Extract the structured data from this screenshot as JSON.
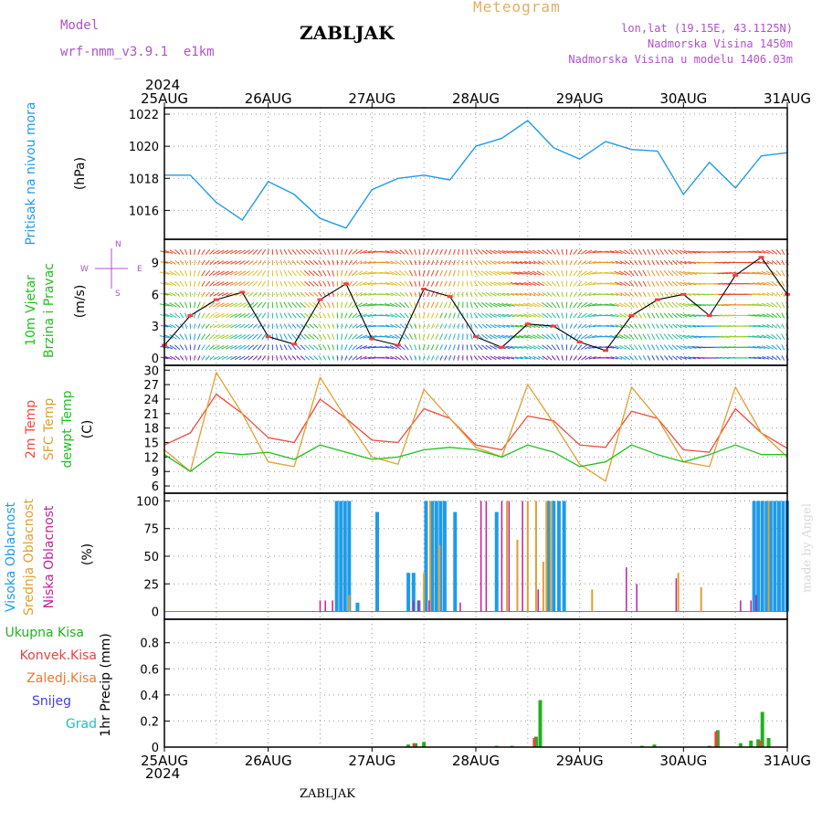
{
  "header": {
    "model_label": "Model",
    "model_name": "wrf-nmm_v3.9.1  e1km",
    "station": "ZABLJAK",
    "product": "Meteogram",
    "coords": "lon,lat (19.15E, 43.1125N)",
    "elevation": "Nadmorska Visina 1450m",
    "model_elevation": "Nadmorska Visina u modelu 1406.03m",
    "year_top": "2024",
    "year_bottom": "2024",
    "footer_station": "ZABLJAK",
    "watermark": "made by Angel"
  },
  "colors": {
    "pressure": "#1f9be8",
    "temp2m": "#f04a3c",
    "sfc_temp": "#e0a030",
    "dewpoint": "#20c020",
    "high_cloud": "#1f9be8",
    "mid_cloud": "#e0a030",
    "low_cloud": "#c0209c",
    "total_precip": "#22b022",
    "conv_precip": "#f04040",
    "frz_precip": "#f07830",
    "snow": "#4040e0",
    "hail": "#20c0c0",
    "title_purple": "#b050d0",
    "grid": "#999999"
  },
  "chart_data": [
    {
      "type": "line",
      "panel": "pressure",
      "ylabel_name": "Pritisak na nivou mora",
      "ylabel_unit": "(hPa)",
      "x_ticks": [
        "25AUG",
        "26AUG",
        "27AUG",
        "28AUG",
        "29AUG",
        "30AUG",
        "31AUG"
      ],
      "y_ticks": [
        1016,
        1018,
        1020,
        1022
      ],
      "ylim": [
        1014.2,
        1022.4
      ],
      "x": [
        0,
        0.25,
        0.5,
        0.75,
        1,
        1.25,
        1.5,
        1.75,
        2,
        2.25,
        2.5,
        2.75,
        3,
        3.25,
        3.5,
        3.75,
        4,
        4.25,
        4.5,
        4.75,
        5,
        5.25,
        5.5,
        5.75,
        6
      ],
      "series": [
        {
          "values": [
            1018.2,
            1018.2,
            1016.5,
            1015.4,
            1017.8,
            1017.0,
            1015.5,
            1014.9,
            1017.3,
            1018.0,
            1018.2,
            1017.9,
            1020.0,
            1020.5,
            1021.6,
            1019.9,
            1019.2,
            1020.3,
            1019.8,
            1019.7,
            1017.0,
            1019.0,
            1017.4,
            1019.4,
            1019.6
          ]
        }
      ]
    },
    {
      "type": "line",
      "panel": "wind",
      "ylabel_name": "10m Vjetar",
      "ylabel_name2": "Brzina i Pravac",
      "ylabel_unit": "(m/s)",
      "compass": [
        "N",
        "W",
        "E",
        "S"
      ],
      "y_ticks": [
        0,
        3,
        6,
        9
      ],
      "ylim": [
        -0.7,
        11.2
      ],
      "x": [
        0,
        0.25,
        0.5,
        0.75,
        1,
        1.25,
        1.5,
        1.75,
        2,
        2.25,
        2.5,
        2.75,
        3,
        3.25,
        3.5,
        3.75,
        4,
        4.25,
        4.5,
        4.75,
        5,
        5.25,
        5.5,
        5.75,
        6
      ],
      "series": [
        {
          "values": [
            1.2,
            4.0,
            5.5,
            6.2,
            2.0,
            1.3,
            5.5,
            7.0,
            1.8,
            1.2,
            6.5,
            5.8,
            2.0,
            1.0,
            3.2,
            3.0,
            1.5,
            0.7,
            4.0,
            5.5,
            6.0,
            4.0,
            7.8,
            9.5,
            6.0
          ]
        }
      ]
    },
    {
      "type": "line",
      "panel": "temperature",
      "ylabel_name": "2m Temp",
      "ylabel_name2": "SFC Temp",
      "ylabel_name3": "dewpt Temp",
      "ylabel_unit": "(C)",
      "y_ticks": [
        6,
        9,
        12,
        15,
        18,
        21,
        24,
        27,
        30
      ],
      "ylim": [
        4.5,
        31
      ],
      "x": [
        0,
        0.25,
        0.5,
        0.75,
        1,
        1.25,
        1.5,
        1.75,
        2,
        2.25,
        2.5,
        2.75,
        3,
        3.25,
        3.5,
        3.75,
        4,
        4.25,
        4.5,
        4.75,
        5,
        5.25,
        5.5,
        5.75,
        6
      ],
      "series": [
        {
          "name": "2m Temp",
          "values": [
            14.5,
            17.0,
            25.0,
            21.0,
            16.0,
            15.0,
            24.0,
            20.0,
            15.5,
            15.0,
            22.0,
            20.0,
            14.5,
            13.5,
            20.5,
            19.5,
            14.5,
            14.0,
            21.5,
            20.0,
            13.5,
            13.0,
            22.0,
            17.0,
            13.8
          ]
        },
        {
          "name": "SFC Temp",
          "values": [
            13.5,
            9.0,
            29.5,
            21.0,
            11.0,
            10.0,
            28.5,
            20.0,
            12.0,
            10.5,
            26.0,
            20.0,
            14.0,
            12.0,
            27.0,
            19.0,
            10.5,
            7.0,
            26.5,
            20.0,
            11.0,
            10.0,
            26.5,
            17.0,
            12.0
          ]
        },
        {
          "name": "dewpt Temp",
          "values": [
            12.5,
            9.0,
            13.0,
            12.5,
            13.0,
            11.5,
            14.5,
            13.0,
            11.5,
            12.0,
            13.5,
            14.0,
            13.5,
            12.0,
            14.5,
            13.0,
            10.0,
            11.0,
            14.5,
            12.5,
            11.0,
            12.5,
            14.5,
            12.5,
            12.5
          ]
        }
      ]
    },
    {
      "type": "bar",
      "panel": "cloud",
      "ylabel_name": "Visoka Oblacnost",
      "ylabel_name2": "Srednja Oblacnost",
      "ylabel_name3": "Niska Oblacnost",
      "ylabel_unit": "(%)",
      "y_ticks": [
        0,
        25,
        50,
        75,
        100
      ],
      "ylim": [
        -7,
        107
      ],
      "series": [
        {
          "name": "Visoka Oblacnost",
          "x": [
            1.66,
            1.7,
            1.74,
            1.78,
            1.86,
            2.05,
            2.35,
            2.4,
            2.45,
            2.52,
            2.58,
            2.62,
            2.66,
            2.7,
            2.8,
            3.2,
            3.7,
            3.75,
            3.8,
            3.85,
            5.68,
            5.72,
            5.76,
            5.8,
            5.84,
            5.88,
            5.92,
            5.96,
            6.0
          ],
          "values": [
            100,
            100,
            100,
            100,
            8,
            90,
            35,
            35,
            10,
            100,
            100,
            100,
            100,
            100,
            90,
            90,
            100,
            100,
            100,
            100,
            100,
            100,
            100,
            100,
            100,
            100,
            100,
            100,
            100
          ]
        },
        {
          "name": "Srednja Oblacnost",
          "x": [
            1.78,
            2.5,
            2.56,
            2.65,
            3.3,
            3.4,
            3.5,
            3.58,
            3.65,
            3.68,
            3.72,
            4.12,
            4.95,
            5.17,
            5.82
          ],
          "values": [
            15,
            35,
            100,
            60,
            100,
            65,
            100,
            100,
            45,
            100,
            100,
            20,
            35,
            22,
            100
          ]
        },
        {
          "name": "Niska Oblacnost",
          "x": [
            1.5,
            1.55,
            1.62,
            2.4,
            2.45,
            2.55,
            2.85,
            3.05,
            3.1,
            3.25,
            3.32,
            3.45,
            3.6,
            4.45,
            4.55,
            4.93,
            5.55,
            5.65,
            5.7
          ],
          "values": [
            10,
            10,
            10,
            10,
            10,
            10,
            8,
            100,
            100,
            100,
            100,
            100,
            20,
            40,
            25,
            30,
            10,
            10,
            15
          ]
        }
      ]
    },
    {
      "type": "bar",
      "panel": "precipitation",
      "ylabel_name": "1hr Precip (mm)",
      "legend": [
        "Ukupna Kisa",
        "Konvek.Kisa",
        "Zaledj.Kisa",
        "Snijeg",
        "Grad"
      ],
      "x_ticks": [
        "25AUG",
        "26AUG",
        "27AUG",
        "28AUG",
        "29AUG",
        "30AUG",
        "31AUG"
      ],
      "y_ticks": [
        0,
        0.2,
        0.4,
        0.6,
        0.8
      ],
      "ylim": [
        0,
        0.98
      ],
      "series": [
        {
          "name": "Ukupna Kisa",
          "x": [
            2.35,
            2.42,
            2.5,
            3.2,
            3.35,
            3.58,
            3.62,
            4.6,
            4.72,
            5.25,
            5.33,
            5.55,
            5.65,
            5.72,
            5.76,
            5.82
          ],
          "values": [
            0.02,
            0.03,
            0.04,
            0.01,
            0.01,
            0.08,
            0.36,
            0.01,
            0.02,
            0.01,
            0.13,
            0.03,
            0.05,
            0.06,
            0.27,
            0.07
          ]
        },
        {
          "name": "Konvek.Kisa",
          "x": [
            2.42,
            3.58,
            5.33,
            5.76
          ],
          "values": [
            0.03,
            0.07,
            0.12,
            0.05
          ]
        }
      ]
    }
  ]
}
